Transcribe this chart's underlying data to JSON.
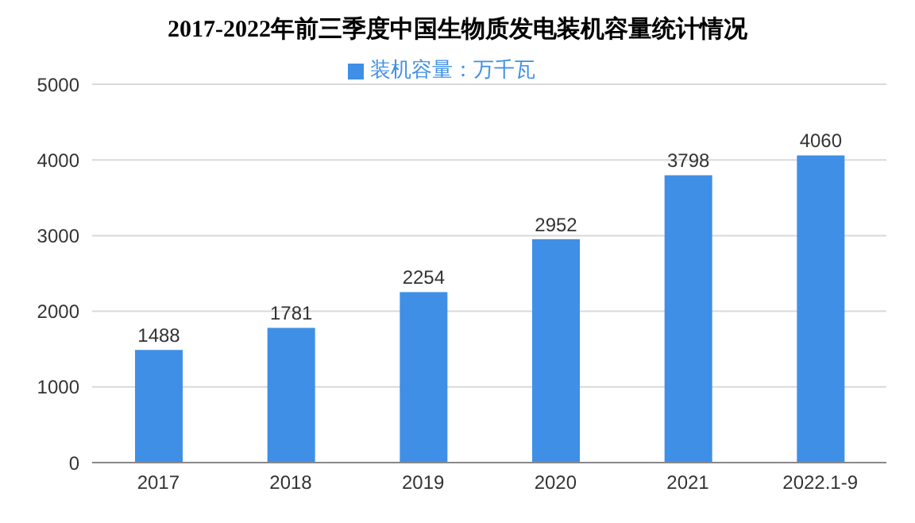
{
  "chart_data": {
    "type": "bar",
    "title": "2017-2022年前三季度中国生物质发电装机容量统计情况",
    "categories": [
      "2017",
      "2018",
      "2019",
      "2020",
      "2021",
      "2022.1-9"
    ],
    "series": [
      {
        "name": "装机容量：万千瓦",
        "color": "#3f8fe6",
        "values": [
          1488,
          1781,
          2254,
          2952,
          3798,
          4060
        ]
      }
    ],
    "ylim": [
      0,
      5000
    ],
    "yticks": [
      0,
      1000,
      2000,
      3000,
      4000,
      5000
    ],
    "grid": "y",
    "legend": "top",
    "data_labels": true
  }
}
